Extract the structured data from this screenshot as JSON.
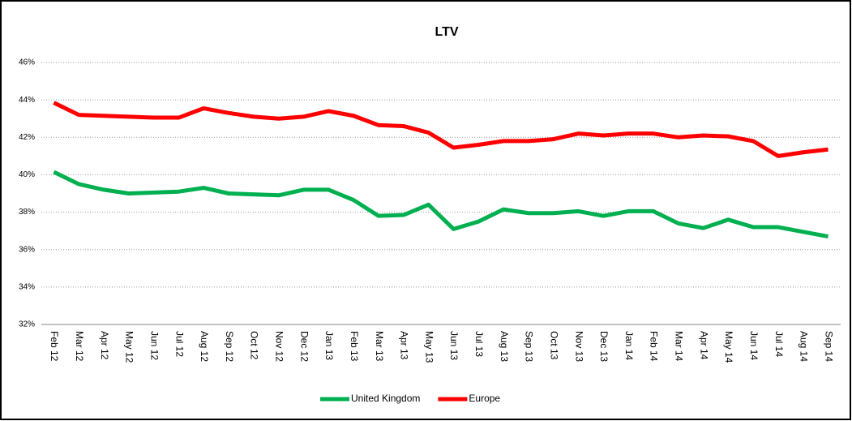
{
  "chart_data": {
    "type": "line",
    "title": "LTV",
    "categories": [
      "Feb 12",
      "Mar 12",
      "Apr 12",
      "May 12",
      "Jun 12",
      "Jul 12",
      "Aug 12",
      "Sep 12",
      "Oct 12",
      "Nov 12",
      "Dec 12",
      "Jan 13",
      "Feb 13",
      "Mar 13",
      "Apr 13",
      "May 13",
      "Jun 13",
      "Jul 13",
      "Aug 13",
      "Sep 13",
      "Oct 13",
      "Nov 13",
      "Dec 13",
      "Jan 14",
      "Feb 14",
      "Mar 14",
      "Apr 14",
      "May 14",
      "Jun 14",
      "Jul 14",
      "Aug 14",
      "Sep 14"
    ],
    "series": [
      {
        "name": "United Kingdom",
        "color": "#00b050",
        "values": [
          40.15,
          39.5,
          39.2,
          39.0,
          39.05,
          39.1,
          39.3,
          39.0,
          38.95,
          38.9,
          39.2,
          39.2,
          38.65,
          37.8,
          37.85,
          38.4,
          37.1,
          37.5,
          38.15,
          37.95,
          37.95,
          38.05,
          37.8,
          38.05,
          38.05,
          37.4,
          37.15,
          37.6,
          37.2,
          37.2,
          36.95,
          36.7
        ]
      },
      {
        "name": "Europe",
        "color": "#ff0000",
        "values": [
          43.85,
          43.2,
          43.15,
          43.1,
          43.05,
          43.05,
          43.55,
          43.3,
          43.1,
          43.0,
          43.1,
          43.4,
          43.15,
          42.65,
          42.6,
          42.25,
          41.45,
          41.6,
          41.8,
          41.8,
          41.9,
          42.2,
          42.1,
          42.2,
          42.2,
          42.0,
          42.1,
          42.05,
          41.8,
          41.0,
          41.2,
          41.35
        ]
      }
    ],
    "ylim": [
      32,
      46
    ],
    "yticks": [
      {
        "value": 32,
        "label": "32%"
      },
      {
        "value": 34,
        "label": "34%"
      },
      {
        "value": 36,
        "label": "36%"
      },
      {
        "value": 38,
        "label": "38%"
      },
      {
        "value": 40,
        "label": "40%"
      },
      {
        "value": 42,
        "label": "42%"
      },
      {
        "value": 44,
        "label": "44%"
      },
      {
        "value": 46,
        "label": "46%"
      }
    ],
    "grid": true,
    "legend": "bottom"
  }
}
